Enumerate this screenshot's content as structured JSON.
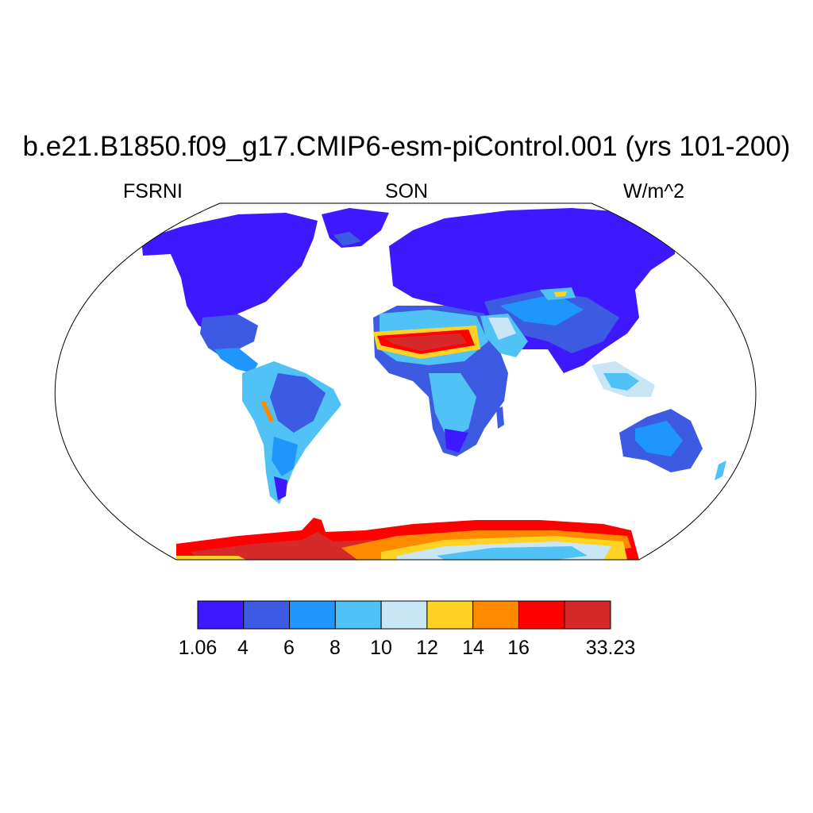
{
  "title": "b.e21.B1850.f09_g17.CMIP6-esm-piControl.001 (yrs 101-200)",
  "subtitle_left": "FSRNI",
  "subtitle_center": "SON",
  "subtitle_right": "W/m^2",
  "colorbar": {
    "colors": [
      "#3f19fd",
      "#3d5ae3",
      "#1e96fc",
      "#51c2f5",
      "#c9e6f7",
      "#ffd224",
      "#ff8a00",
      "#ff0000",
      "#d62a2a"
    ],
    "labels": [
      "1.06",
      "4",
      "6",
      "8",
      "10",
      "12",
      "14",
      "16",
      "33.23"
    ]
  },
  "legend_colors": {
    "level_1": "#3f19fd",
    "level_2": "#3d5ae3",
    "level_3": "#1e96fc",
    "level_4": "#51c2f5",
    "level_5": "#c9e6f7",
    "level_6": "#ffd224",
    "level_7": "#ff8a00",
    "level_8": "#ff0000",
    "level_9": "#d62a2a"
  }
}
